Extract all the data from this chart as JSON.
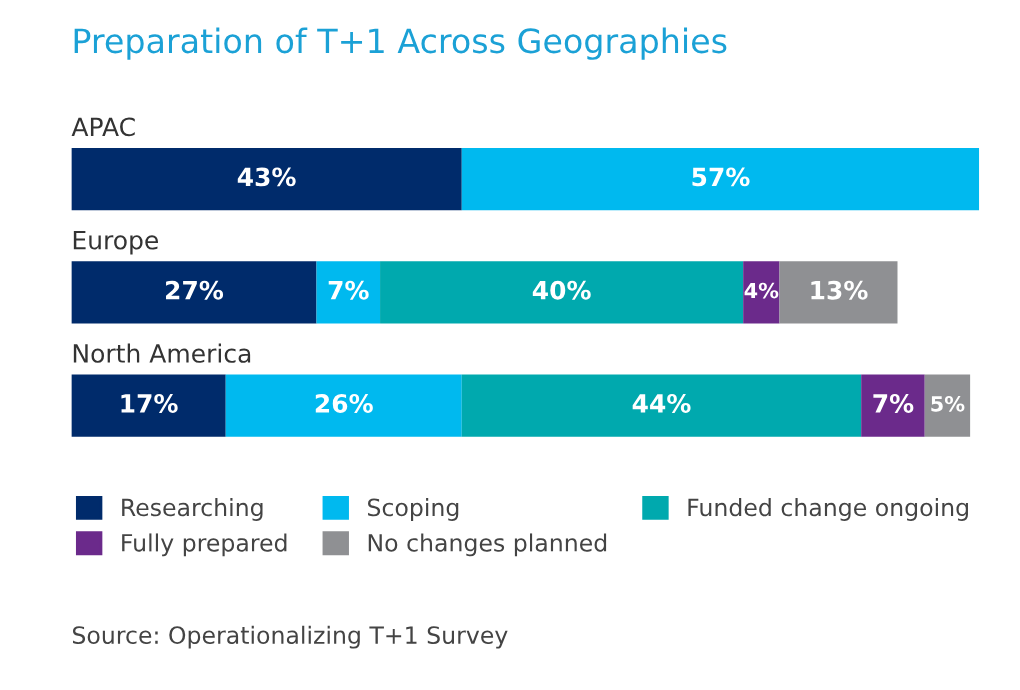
{
  "chart_data": {
    "type": "bar",
    "orientation": "horizontal",
    "stacked": true,
    "title": "Preparation of T+1 Across Geographies",
    "categories": [
      "APAC",
      "Europe",
      "North America"
    ],
    "series": [
      {
        "name": "Researching",
        "color": "#002b6b",
        "values": [
          43,
          27,
          17
        ],
        "value_labels": [
          "43%",
          "27%",
          "17%"
        ]
      },
      {
        "name": "Scoping",
        "color": "#00b9ef",
        "values": [
          57,
          7,
          26
        ],
        "value_labels": [
          "57%",
          "7%",
          "26%"
        ]
      },
      {
        "name": "Funded change ongoing",
        "color": "#00a9ae",
        "values": [
          null,
          40,
          44
        ],
        "value_labels": [
          null,
          "40%",
          "44%"
        ]
      },
      {
        "name": "Fully prepared",
        "color": "#6b2a8b",
        "values": [
          null,
          4,
          7
        ],
        "value_labels": [
          null,
          "4%",
          "7%"
        ]
      },
      {
        "name": "No changes planned",
        "color": "#8f9093",
        "values": [
          null,
          13,
          5
        ],
        "value_labels": [
          null,
          "13%",
          "5%"
        ]
      }
    ],
    "legend": "bottom",
    "tick_labels": false,
    "annotations": [
      "Source: Operationalizing T+1 Survey"
    ]
  }
}
